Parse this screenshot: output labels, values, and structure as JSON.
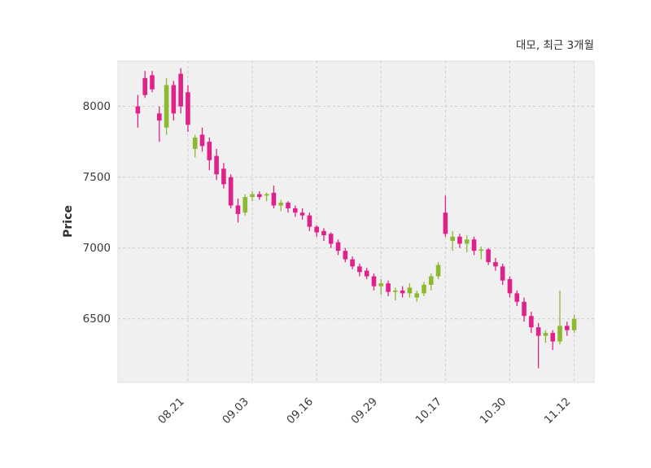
{
  "chart_data": {
    "type": "candlestick",
    "title": "대모, 최근 3개월",
    "ylabel": "Price",
    "xlabel": "",
    "ylim": [
      6050,
      8320
    ],
    "yticks": [
      6500,
      7000,
      7500,
      8000
    ],
    "xtick_labels": [
      "08.21",
      "09.03",
      "09.16",
      "09.29",
      "10.17",
      "10.30",
      "11.12"
    ],
    "xtick_indices": [
      7,
      16,
      25,
      34,
      43,
      52,
      61
    ],
    "up_color": "#8cb92d",
    "down_color": "#e0218a",
    "plot_bg": "#f0f0f0",
    "grid_color": "#cccccc",
    "spine_color": "#e2e2e2",
    "grid": true,
    "legend": "none",
    "candles": [
      [
        8000,
        8080,
        7850,
        7950
      ],
      [
        8200,
        8250,
        8060,
        8080
      ],
      [
        8220,
        8250,
        8100,
        8120
      ],
      [
        7950,
        8000,
        7750,
        7900
      ],
      [
        7850,
        8200,
        7800,
        8150
      ],
      [
        8150,
        8180,
        7900,
        7950
      ],
      [
        8230,
        8270,
        7950,
        8000
      ],
      [
        8100,
        8150,
        7820,
        7870
      ],
      [
        7700,
        7800,
        7640,
        7780
      ],
      [
        7800,
        7850,
        7680,
        7720
      ],
      [
        7750,
        7780,
        7550,
        7620
      ],
      [
        7650,
        7700,
        7480,
        7520
      ],
      [
        7560,
        7600,
        7420,
        7450
      ],
      [
        7500,
        7520,
        7280,
        7300
      ],
      [
        7300,
        7350,
        7180,
        7240
      ],
      [
        7250,
        7380,
        7230,
        7360
      ],
      [
        7360,
        7400,
        7330,
        7380
      ],
      [
        7380,
        7400,
        7340,
        7360
      ],
      [
        7370,
        7390,
        7330,
        7380
      ],
      [
        7390,
        7440,
        7280,
        7300
      ],
      [
        7300,
        7340,
        7260,
        7320
      ],
      [
        7320,
        7330,
        7250,
        7280
      ],
      [
        7280,
        7300,
        7220,
        7250
      ],
      [
        7250,
        7280,
        7200,
        7230
      ],
      [
        7230,
        7250,
        7120,
        7150
      ],
      [
        7150,
        7160,
        7080,
        7110
      ],
      [
        7120,
        7140,
        7050,
        7090
      ],
      [
        7100,
        7110,
        7000,
        7030
      ],
      [
        7040,
        7060,
        6950,
        6980
      ],
      [
        6980,
        7000,
        6900,
        6920
      ],
      [
        6920,
        6940,
        6850,
        6870
      ],
      [
        6870,
        6890,
        6800,
        6830
      ],
      [
        6840,
        6860,
        6780,
        6800
      ],
      [
        6800,
        6820,
        6700,
        6730
      ],
      [
        6730,
        6780,
        6670,
        6750
      ],
      [
        6750,
        6770,
        6660,
        6690
      ],
      [
        6690,
        6720,
        6630,
        6700
      ],
      [
        6700,
        6730,
        6650,
        6680
      ],
      [
        6680,
        6750,
        6650,
        6720
      ],
      [
        6650,
        6700,
        6620,
        6680
      ],
      [
        6680,
        6760,
        6660,
        6740
      ],
      [
        6740,
        6820,
        6700,
        6800
      ],
      [
        6800,
        6900,
        6780,
        6880
      ],
      [
        7250,
        7370,
        7080,
        7100
      ],
      [
        7050,
        7120,
        6980,
        7080
      ],
      [
        7080,
        7100,
        7000,
        7030
      ],
      [
        7030,
        7090,
        6970,
        7060
      ],
      [
        7060,
        7080,
        6950,
        6980
      ],
      [
        6980,
        7010,
        6920,
        6990
      ],
      [
        6990,
        7000,
        6880,
        6900
      ],
      [
        6900,
        6930,
        6840,
        6870
      ],
      [
        6870,
        6890,
        6740,
        6770
      ],
      [
        6780,
        6800,
        6650,
        6680
      ],
      [
        6680,
        6700,
        6590,
        6620
      ],
      [
        6620,
        6650,
        6480,
        6520
      ],
      [
        6520,
        6550,
        6400,
        6440
      ],
      [
        6440,
        6470,
        6150,
        6380
      ],
      [
        6380,
        6420,
        6330,
        6400
      ],
      [
        6400,
        6420,
        6280,
        6340
      ],
      [
        6340,
        6700,
        6320,
        6450
      ],
      [
        6450,
        6480,
        6380,
        6420
      ],
      [
        6420,
        6530,
        6400,
        6500
      ]
    ]
  }
}
